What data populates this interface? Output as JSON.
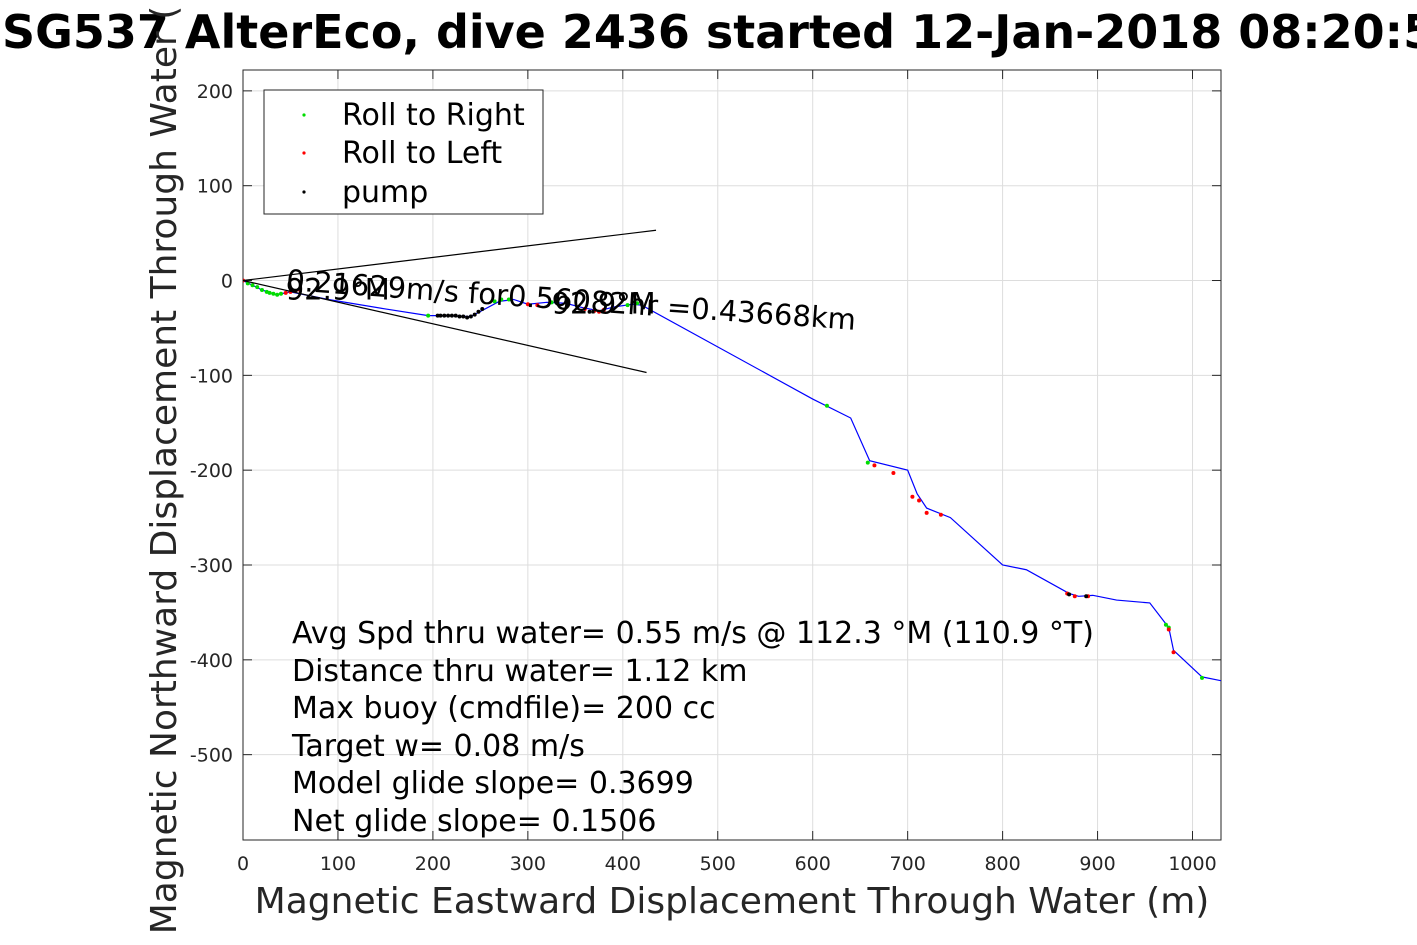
{
  "chart_data": {
    "type": "scatter",
    "title": "SG537 AlterEco, dive 2436 started 12-Jan-2018 08:20:5",
    "xlabel": "Magnetic Eastward Displacement Through Water (m)",
    "ylabel": "Magnetic Northward Displacement Through Water (",
    "xlim": [
      0,
      1030
    ],
    "ylim": [
      -590,
      222
    ],
    "xticks": [
      0,
      100,
      200,
      300,
      400,
      500,
      600,
      700,
      800,
      900,
      1000
    ],
    "yticks": [
      200,
      100,
      0,
      -100,
      -200,
      -300,
      -400,
      -500
    ],
    "grid": true,
    "legend_position": "top-left",
    "colors": {
      "track": "#0000ff",
      "roll_right": "#00dd00",
      "roll_left": "#ff0000",
      "pump": "#000000",
      "grid": "#dddddd"
    },
    "legend": [
      "Roll to Right",
      "Roll to Left",
      "pump"
    ],
    "track": [
      [
        0,
        0
      ],
      [
        20,
        -10
      ],
      [
        35,
        -15
      ],
      [
        50,
        -12
      ],
      [
        90,
        -20
      ],
      [
        150,
        -30
      ],
      [
        195,
        -37
      ],
      [
        215,
        -37
      ],
      [
        240,
        -38
      ],
      [
        270,
        -22
      ],
      [
        285,
        -20
      ],
      [
        300,
        -25
      ],
      [
        320,
        -23
      ],
      [
        340,
        -24
      ],
      [
        355,
        -28
      ],
      [
        375,
        -32
      ],
      [
        390,
        -28
      ],
      [
        410,
        -25
      ],
      [
        420,
        -26
      ],
      [
        600,
        -125
      ],
      [
        640,
        -145
      ],
      [
        660,
        -190
      ],
      [
        700,
        -200
      ],
      [
        710,
        -225
      ],
      [
        720,
        -240
      ],
      [
        745,
        -250
      ],
      [
        800,
        -300
      ],
      [
        825,
        -305
      ],
      [
        870,
        -330
      ],
      [
        880,
        -333
      ],
      [
        895,
        -332
      ],
      [
        920,
        -337
      ],
      [
        955,
        -340
      ],
      [
        975,
        -366
      ],
      [
        980,
        -390
      ],
      [
        1010,
        -418
      ],
      [
        1030,
        -422
      ]
    ],
    "roll_right": [
      [
        5,
        -3
      ],
      [
        10,
        -5
      ],
      [
        15,
        -7
      ],
      [
        20,
        -10
      ],
      [
        25,
        -12
      ],
      [
        28,
        -13
      ],
      [
        32,
        -14
      ],
      [
        36,
        -15
      ],
      [
        40,
        -14
      ],
      [
        195,
        -37
      ],
      [
        265,
        -22
      ],
      [
        272,
        -20
      ],
      [
        280,
        -20
      ],
      [
        325,
        -23
      ],
      [
        405,
        -26
      ],
      [
        415,
        -24
      ],
      [
        615,
        -132
      ],
      [
        658,
        -192
      ],
      [
        1010,
        -419
      ],
      [
        975,
        -366
      ],
      [
        972,
        -363
      ]
    ],
    "roll_left": [
      [
        0,
        0
      ],
      [
        45,
        -13
      ],
      [
        50,
        -12
      ],
      [
        55,
        -11
      ],
      [
        60,
        -10
      ],
      [
        300,
        -25
      ],
      [
        310,
        -26
      ],
      [
        360,
        -30
      ],
      [
        370,
        -32
      ],
      [
        375,
        -33
      ],
      [
        380,
        -31
      ],
      [
        665,
        -195
      ],
      [
        685,
        -203
      ],
      [
        705,
        -228
      ],
      [
        712,
        -232
      ],
      [
        720,
        -245
      ],
      [
        735,
        -247
      ],
      [
        868,
        -330
      ],
      [
        876,
        -333
      ],
      [
        890,
        -333
      ],
      [
        980,
        -392
      ],
      [
        975,
        -368
      ]
    ],
    "pump": [
      [
        205,
        -37
      ],
      [
        208,
        -37
      ],
      [
        212,
        -37
      ],
      [
        216,
        -37
      ],
      [
        220,
        -37
      ],
      [
        224,
        -37
      ],
      [
        228,
        -38
      ],
      [
        232,
        -38
      ],
      [
        236,
        -39
      ],
      [
        240,
        -38
      ],
      [
        244,
        -36
      ],
      [
        248,
        -33
      ],
      [
        252,
        -30
      ],
      [
        365,
        -33
      ],
      [
        870,
        -331
      ],
      [
        888,
        -333
      ]
    ],
    "current_lines": [
      [
        [
          0,
          0
        ],
        [
          435,
          53
        ]
      ],
      [
        [
          0,
          0
        ],
        [
          425,
          -97
        ]
      ]
    ],
    "annotations": [
      {
        "text": "0.21629m/s for0.56082hr =0.43668km",
        "x": 45,
        "y": -10,
        "angle": 4
      },
      {
        "text": "92.9°M",
        "x": 45,
        "y": -20,
        "angle": 0
      },
      {
        "text": "92.9°M",
        "x": 325,
        "y": -35,
        "angle": 0
      }
    ],
    "info_lines": [
      "Avg Spd thru water=  0.55 m/s @ 112.3 °M (110.9 °T)",
      "Distance thru water=  1.12 km",
      "Max buoy (cmdfile)= 200 cc",
      "Target w= 0.08 m/s",
      "Model glide slope= 0.3699",
      "Net glide slope= 0.1506"
    ]
  }
}
